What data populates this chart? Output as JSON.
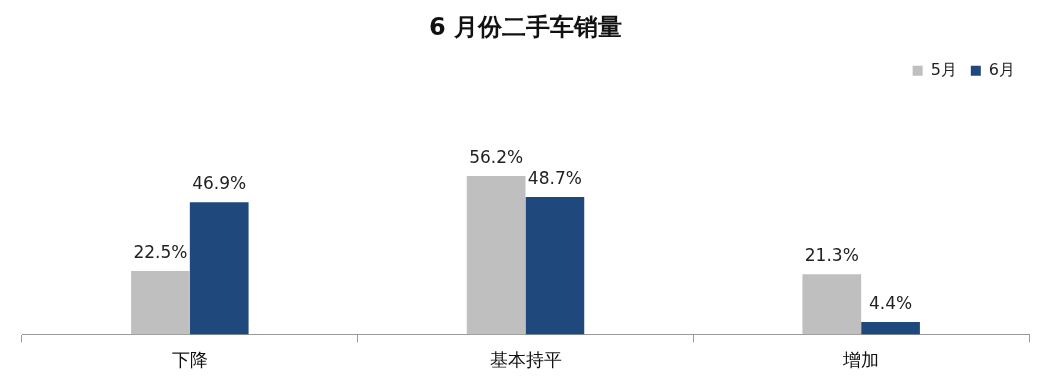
{
  "chart_data": {
    "type": "bar",
    "title": "6 月份二手车销量",
    "categories": [
      "下降",
      "基本持平",
      "增加"
    ],
    "series": [
      {
        "name": "5月",
        "color": "#bfbfbf",
        "values": [
          22.5,
          56.2,
          21.3
        ],
        "value_labels": [
          "22.5%",
          "56.2%",
          "21.3%"
        ]
      },
      {
        "name": "6月",
        "color": "#1f497d",
        "values": [
          46.9,
          48.7,
          4.4
        ],
        "value_labels": [
          "46.9%",
          "48.7%",
          "4.4%"
        ]
      }
    ],
    "legend": "top right",
    "grid": false
  }
}
